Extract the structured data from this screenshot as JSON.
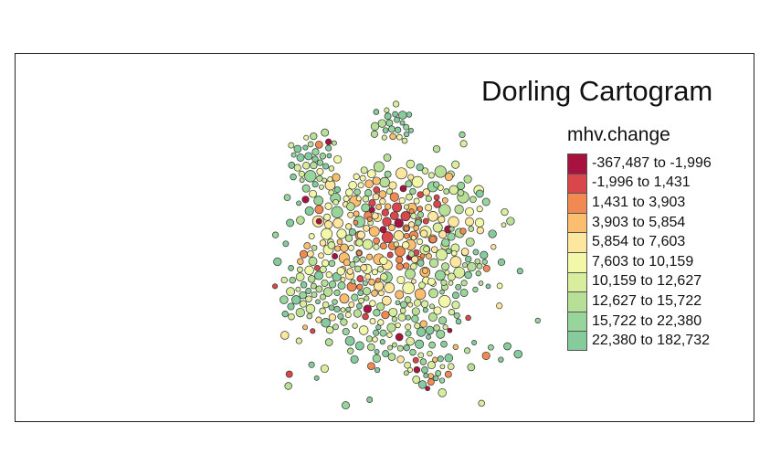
{
  "map": {
    "title": "Dorling Cartogram",
    "legend_title": "mhv.change",
    "variable": "mhv.change",
    "classes": [
      {
        "label": "-367,487 to -1,996",
        "color": "#a8123f"
      },
      {
        "label": "-1,996 to 1,431",
        "color": "#d9474a"
      },
      {
        "label": "1,431 to 3,903",
        "color": "#f08a52"
      },
      {
        "label": "3,903 to 5,854",
        "color": "#fbbd6e"
      },
      {
        "label": "5,854 to 7,603",
        "color": "#fde69d"
      },
      {
        "label": "7,603 to 10,159",
        "color": "#f2f8a8"
      },
      {
        "label": "10,159 to 12,627",
        "color": "#d8ee9c"
      },
      {
        "label": "12,627 to 15,722",
        "color": "#b7e096"
      },
      {
        "label": "15,722 to 22,380",
        "color": "#98d59a"
      },
      {
        "label": "22,380 to 182,732",
        "color": "#86cb9b"
      }
    ],
    "border_color": "#333333"
  }
}
